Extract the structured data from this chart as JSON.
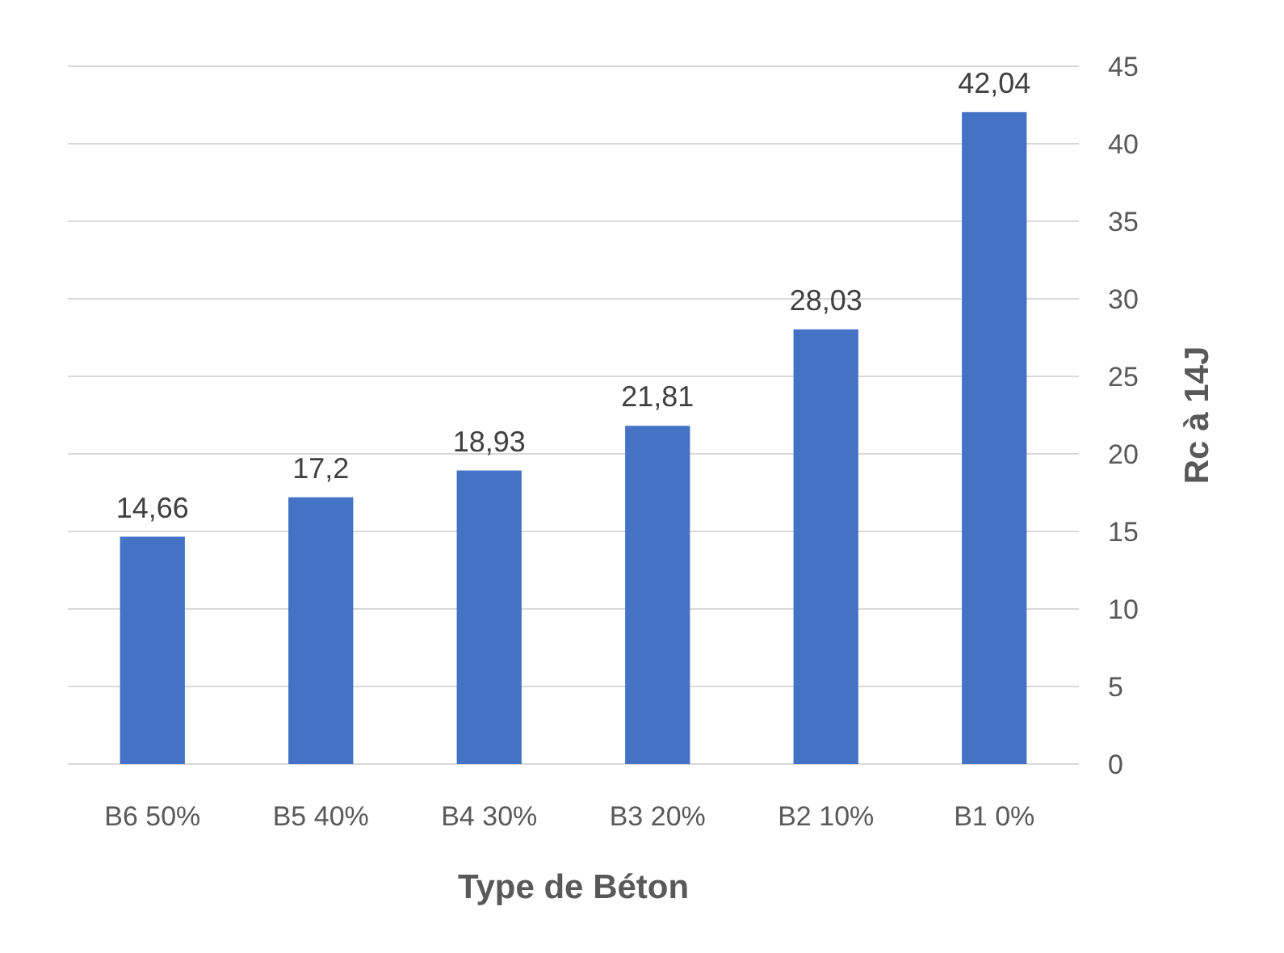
{
  "chart_data": {
    "type": "bar",
    "xlabel": "Type de Béton",
    "ylabel": "Rc à 14J",
    "categories": [
      "B6 50%",
      "B5 40%",
      "B4 30%",
      "B3 20%",
      "B2 10%",
      "B1 0%"
    ],
    "values": [
      14.66,
      17.2,
      18.93,
      21.81,
      28.03,
      42.04
    ],
    "value_labels": [
      "14,66",
      "17,2",
      "18,93",
      "21,81",
      "28,03",
      "42,04"
    ],
    "color": "#4472c4",
    "ylim": [
      0,
      45
    ],
    "yticks": [
      0,
      5,
      10,
      15,
      20,
      25,
      30,
      35,
      40,
      45
    ],
    "grid": "y"
  }
}
